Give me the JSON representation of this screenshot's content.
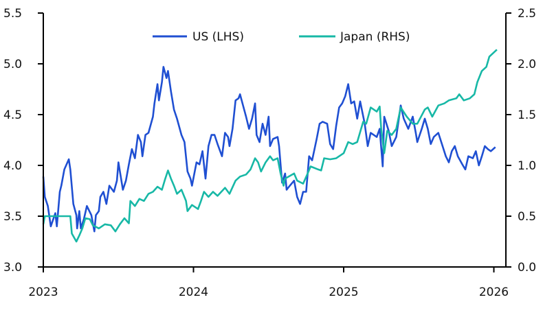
{
  "chart_data": {
    "type": "line",
    "title": "",
    "xlabel": "",
    "ylabel": "",
    "y2label": "",
    "xlim": [
      2023,
      2026.05
    ],
    "ylim": [
      3.0,
      5.5
    ],
    "y2lim": [
      0.0,
      2.5
    ],
    "x_ticks": [
      2023,
      2024,
      2025,
      2026
    ],
    "x_tick_labels": [
      "2023",
      "2024",
      "2025",
      "2026"
    ],
    "y_ticks": [
      "3.0",
      "3.5",
      "4.0",
      "4.5",
      "5.0",
      "5.5"
    ],
    "y2_ticks": [
      "0.0",
      "0.5",
      "1.0",
      "1.5",
      "2.0",
      "2.5"
    ],
    "grid": false,
    "legend_position": "top-center",
    "series": [
      {
        "name": "US (LHS)",
        "axis": "left",
        "color": "#1f4fd2",
        "points": [
          [
            2023.0,
            3.89
          ],
          [
            2023.01,
            3.69
          ],
          [
            2023.03,
            3.6
          ],
          [
            2023.05,
            3.4
          ],
          [
            2023.08,
            3.53
          ],
          [
            2023.09,
            3.4
          ],
          [
            2023.11,
            3.74
          ],
          [
            2023.12,
            3.8
          ],
          [
            2023.14,
            3.96
          ],
          [
            2023.17,
            4.06
          ],
          [
            2023.18,
            3.96
          ],
          [
            2023.2,
            3.62
          ],
          [
            2023.22,
            3.51
          ],
          [
            2023.225,
            3.38
          ],
          [
            2023.24,
            3.55
          ],
          [
            2023.25,
            3.38
          ],
          [
            2023.27,
            3.47
          ],
          [
            2023.29,
            3.6
          ],
          [
            2023.32,
            3.51
          ],
          [
            2023.34,
            3.35
          ],
          [
            2023.35,
            3.51
          ],
          [
            2023.37,
            3.55
          ],
          [
            2023.38,
            3.69
          ],
          [
            2023.4,
            3.74
          ],
          [
            2023.42,
            3.62
          ],
          [
            2023.44,
            3.8
          ],
          [
            2023.47,
            3.74
          ],
          [
            2023.49,
            3.85
          ],
          [
            2023.5,
            4.03
          ],
          [
            2023.53,
            3.76
          ],
          [
            2023.55,
            3.85
          ],
          [
            2023.57,
            4.01
          ],
          [
            2023.59,
            4.16
          ],
          [
            2023.61,
            4.07
          ],
          [
            2023.63,
            4.3
          ],
          [
            2023.65,
            4.23
          ],
          [
            2023.66,
            4.09
          ],
          [
            2023.68,
            4.3
          ],
          [
            2023.7,
            4.32
          ],
          [
            2023.73,
            4.48
          ],
          [
            2023.74,
            4.61
          ],
          [
            2023.76,
            4.8
          ],
          [
            2023.77,
            4.64
          ],
          [
            2023.79,
            4.82
          ],
          [
            2023.8,
            4.97
          ],
          [
            2023.82,
            4.86
          ],
          [
            2023.83,
            4.93
          ],
          [
            2023.85,
            4.73
          ],
          [
            2023.87,
            4.55
          ],
          [
            2023.89,
            4.46
          ],
          [
            2023.92,
            4.3
          ],
          [
            2023.94,
            4.23
          ],
          [
            2023.96,
            3.94
          ],
          [
            2023.98,
            3.87
          ],
          [
            2023.99,
            3.8
          ],
          [
            2024.02,
            4.03
          ],
          [
            2024.04,
            4.01
          ],
          [
            2024.06,
            4.14
          ],
          [
            2024.08,
            3.87
          ],
          [
            2024.1,
            4.19
          ],
          [
            2024.12,
            4.3
          ],
          [
            2024.14,
            4.3
          ],
          [
            2024.16,
            4.21
          ],
          [
            2024.19,
            4.09
          ],
          [
            2024.21,
            4.32
          ],
          [
            2024.23,
            4.28
          ],
          [
            2024.24,
            4.19
          ],
          [
            2024.26,
            4.36
          ],
          [
            2024.28,
            4.64
          ],
          [
            2024.3,
            4.66
          ],
          [
            2024.31,
            4.7
          ],
          [
            2024.33,
            4.59
          ],
          [
            2024.35,
            4.48
          ],
          [
            2024.37,
            4.36
          ],
          [
            2024.39,
            4.46
          ],
          [
            2024.41,
            4.61
          ],
          [
            2024.42,
            4.3
          ],
          [
            2024.44,
            4.23
          ],
          [
            2024.46,
            4.41
          ],
          [
            2024.48,
            4.3
          ],
          [
            2024.5,
            4.48
          ],
          [
            2024.51,
            4.19
          ],
          [
            2024.53,
            4.26
          ],
          [
            2024.56,
            4.28
          ],
          [
            2024.57,
            4.19
          ],
          [
            2024.59,
            3.83
          ],
          [
            2024.61,
            3.92
          ],
          [
            2024.62,
            3.76
          ],
          [
            2024.63,
            3.78
          ],
          [
            2024.67,
            3.85
          ],
          [
            2024.69,
            3.69
          ],
          [
            2024.71,
            3.62
          ],
          [
            2024.73,
            3.74
          ],
          [
            2024.75,
            3.74
          ],
          [
            2024.77,
            4.09
          ],
          [
            2024.79,
            4.05
          ],
          [
            2024.82,
            4.26
          ],
          [
            2024.84,
            4.41
          ],
          [
            2024.86,
            4.43
          ],
          [
            2024.89,
            4.41
          ],
          [
            2024.91,
            4.21
          ],
          [
            2024.93,
            4.16
          ],
          [
            2024.95,
            4.39
          ],
          [
            2024.97,
            4.57
          ],
          [
            2024.99,
            4.61
          ],
          [
            2025.01,
            4.68
          ],
          [
            2025.03,
            4.8
          ],
          [
            2025.05,
            4.61
          ],
          [
            2025.07,
            4.63
          ],
          [
            2025.09,
            4.46
          ],
          [
            2025.11,
            4.63
          ],
          [
            2025.14,
            4.41
          ],
          [
            2025.16,
            4.19
          ],
          [
            2025.18,
            4.32
          ],
          [
            2025.22,
            4.28
          ],
          [
            2025.24,
            4.36
          ],
          [
            2025.26,
            3.99
          ],
          [
            2025.27,
            4.48
          ],
          [
            2025.3,
            4.34
          ],
          [
            2025.32,
            4.19
          ],
          [
            2025.35,
            4.28
          ],
          [
            2025.38,
            4.59
          ],
          [
            2025.4,
            4.46
          ],
          [
            2025.43,
            4.36
          ],
          [
            2025.46,
            4.48
          ],
          [
            2025.48,
            4.32
          ],
          [
            2025.49,
            4.23
          ],
          [
            2025.52,
            4.36
          ],
          [
            2025.54,
            4.46
          ],
          [
            2025.56,
            4.36
          ],
          [
            2025.58,
            4.21
          ],
          [
            2025.6,
            4.28
          ],
          [
            2025.63,
            4.32
          ],
          [
            2025.65,
            4.23
          ],
          [
            2025.68,
            4.09
          ],
          [
            2025.7,
            4.03
          ],
          [
            2025.72,
            4.14
          ],
          [
            2025.74,
            4.19
          ],
          [
            2025.76,
            4.09
          ],
          [
            2025.79,
            4.01
          ],
          [
            2025.81,
            3.96
          ],
          [
            2025.83,
            4.09
          ],
          [
            2025.86,
            4.07
          ],
          [
            2025.88,
            4.14
          ],
          [
            2025.9,
            4.0
          ],
          [
            2025.92,
            4.09
          ],
          [
            2025.94,
            4.19
          ],
          [
            2025.96,
            4.16
          ],
          [
            2025.98,
            4.14
          ],
          [
            2026.01,
            4.18
          ]
        ]
      },
      {
        "name": "Japan (RHS)",
        "axis": "right",
        "color": "#17b8a6",
        "points": [
          [
            2023.0,
            0.42
          ],
          [
            2023.01,
            0.5
          ],
          [
            2023.18,
            0.5
          ],
          [
            2023.19,
            0.33
          ],
          [
            2023.22,
            0.25
          ],
          [
            2023.24,
            0.31
          ],
          [
            2023.26,
            0.38
          ],
          [
            2023.28,
            0.48
          ],
          [
            2023.31,
            0.47
          ],
          [
            2023.33,
            0.41
          ],
          [
            2023.37,
            0.38
          ],
          [
            2023.41,
            0.42
          ],
          [
            2023.45,
            0.41
          ],
          [
            2023.48,
            0.35
          ],
          [
            2023.51,
            0.42
          ],
          [
            2023.54,
            0.48
          ],
          [
            2023.57,
            0.43
          ],
          [
            2023.58,
            0.65
          ],
          [
            2023.61,
            0.6
          ],
          [
            2023.64,
            0.67
          ],
          [
            2023.67,
            0.65
          ],
          [
            2023.7,
            0.72
          ],
          [
            2023.73,
            0.74
          ],
          [
            2023.76,
            0.79
          ],
          [
            2023.79,
            0.76
          ],
          [
            2023.81,
            0.86
          ],
          [
            2023.83,
            0.95
          ],
          [
            2023.85,
            0.87
          ],
          [
            2023.87,
            0.8
          ],
          [
            2023.89,
            0.72
          ],
          [
            2023.92,
            0.76
          ],
          [
            2023.95,
            0.65
          ],
          [
            2023.96,
            0.55
          ],
          [
            2023.99,
            0.61
          ],
          [
            2024.03,
            0.57
          ],
          [
            2024.05,
            0.65
          ],
          [
            2024.07,
            0.74
          ],
          [
            2024.1,
            0.69
          ],
          [
            2024.13,
            0.74
          ],
          [
            2024.16,
            0.7
          ],
          [
            2024.21,
            0.78
          ],
          [
            2024.24,
            0.72
          ],
          [
            2024.28,
            0.85
          ],
          [
            2024.31,
            0.89
          ],
          [
            2024.35,
            0.91
          ],
          [
            2024.38,
            0.96
          ],
          [
            2024.41,
            1.07
          ],
          [
            2024.43,
            1.03
          ],
          [
            2024.45,
            0.94
          ],
          [
            2024.48,
            1.03
          ],
          [
            2024.51,
            1.09
          ],
          [
            2024.53,
            1.05
          ],
          [
            2024.56,
            1.07
          ],
          [
            2024.58,
            0.92
          ],
          [
            2024.6,
            0.8
          ],
          [
            2024.61,
            0.87
          ],
          [
            2024.67,
            0.92
          ],
          [
            2024.69,
            0.85
          ],
          [
            2024.73,
            0.82
          ],
          [
            2024.76,
            0.92
          ],
          [
            2024.78,
            0.99
          ],
          [
            2024.83,
            0.96
          ],
          [
            2024.85,
            0.95
          ],
          [
            2024.87,
            1.07
          ],
          [
            2024.91,
            1.06
          ],
          [
            2024.95,
            1.07
          ],
          [
            2025.0,
            1.12
          ],
          [
            2025.03,
            1.23
          ],
          [
            2025.06,
            1.21
          ],
          [
            2025.09,
            1.23
          ],
          [
            2025.13,
            1.43
          ],
          [
            2025.15,
            1.41
          ],
          [
            2025.18,
            1.57
          ],
          [
            2025.22,
            1.53
          ],
          [
            2025.24,
            1.58
          ],
          [
            2025.25,
            1.36
          ],
          [
            2025.27,
            1.12
          ],
          [
            2025.29,
            1.34
          ],
          [
            2025.32,
            1.3
          ],
          [
            2025.35,
            1.36
          ],
          [
            2025.38,
            1.57
          ],
          [
            2025.42,
            1.48
          ],
          [
            2025.46,
            1.41
          ],
          [
            2025.49,
            1.41
          ],
          [
            2025.54,
            1.55
          ],
          [
            2025.56,
            1.57
          ],
          [
            2025.59,
            1.48
          ],
          [
            2025.63,
            1.59
          ],
          [
            2025.67,
            1.61
          ],
          [
            2025.7,
            1.64
          ],
          [
            2025.75,
            1.66
          ],
          [
            2025.77,
            1.7
          ],
          [
            2025.8,
            1.64
          ],
          [
            2025.84,
            1.66
          ],
          [
            2025.87,
            1.7
          ],
          [
            2025.89,
            1.82
          ],
          [
            2025.92,
            1.93
          ],
          [
            2025.95,
            1.97
          ],
          [
            2025.97,
            2.07
          ],
          [
            2026.02,
            2.14
          ]
        ]
      }
    ]
  }
}
